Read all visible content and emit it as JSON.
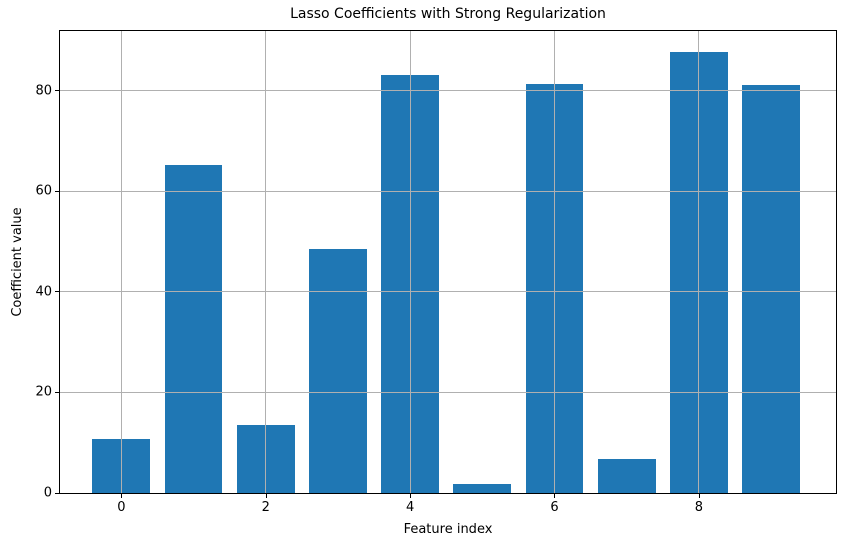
{
  "chart_data": {
    "type": "bar",
    "title": "Lasso Coefficients with Strong Regularization",
    "xlabel": "Feature index",
    "ylabel": "Coefficient value",
    "categories": [
      0,
      1,
      2,
      3,
      4,
      5,
      6,
      7,
      8,
      9
    ],
    "values": [
      10.7,
      65.2,
      13.5,
      48.6,
      83.1,
      1.8,
      81.4,
      6.8,
      87.7,
      81.1
    ],
    "series_name": "Lasso coefficient",
    "bar_color": "#1f77b4",
    "grid_color": "#b0b0b0",
    "spine_color": "#000000",
    "xticks": [
      0,
      2,
      4,
      6,
      8
    ],
    "yticks": [
      0,
      20,
      40,
      60,
      80
    ],
    "xlim": [
      -0.85,
      9.9
    ],
    "ylim": [
      0,
      91.9
    ],
    "bar_width": 0.8,
    "grid": true,
    "legend": "none"
  }
}
